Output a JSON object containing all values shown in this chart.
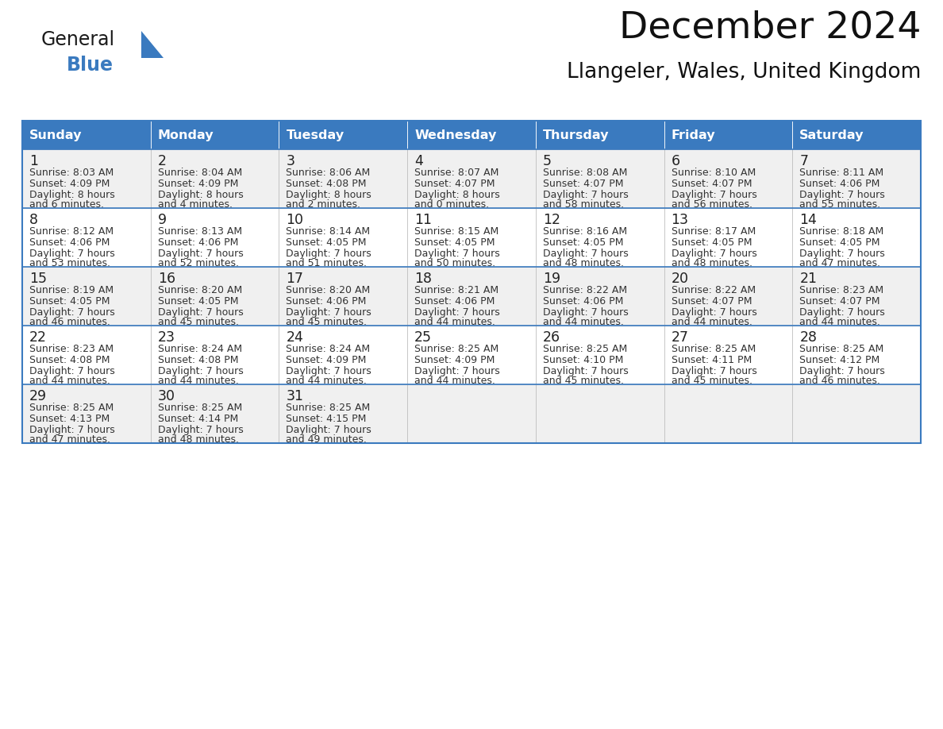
{
  "title": "December 2024",
  "subtitle": "Llangeler, Wales, United Kingdom",
  "header_color": "#3a7abf",
  "header_text_color": "#ffffff",
  "cell_bg_odd": "#f0f0f0",
  "cell_bg_even": "#ffffff",
  "border_color": "#3a7abf",
  "inner_border_color": "#aaaaaa",
  "day_headers": [
    "Sunday",
    "Monday",
    "Tuesday",
    "Wednesday",
    "Thursday",
    "Friday",
    "Saturday"
  ],
  "weeks": [
    [
      {
        "day": 1,
        "sunrise": "8:03 AM",
        "sunset": "4:09 PM",
        "daylight": "8 hours and 6 minutes."
      },
      {
        "day": 2,
        "sunrise": "8:04 AM",
        "sunset": "4:09 PM",
        "daylight": "8 hours and 4 minutes."
      },
      {
        "day": 3,
        "sunrise": "8:06 AM",
        "sunset": "4:08 PM",
        "daylight": "8 hours and 2 minutes."
      },
      {
        "day": 4,
        "sunrise": "8:07 AM",
        "sunset": "4:07 PM",
        "daylight": "8 hours and 0 minutes."
      },
      {
        "day": 5,
        "sunrise": "8:08 AM",
        "sunset": "4:07 PM",
        "daylight": "7 hours and 58 minutes."
      },
      {
        "day": 6,
        "sunrise": "8:10 AM",
        "sunset": "4:07 PM",
        "daylight": "7 hours and 56 minutes."
      },
      {
        "day": 7,
        "sunrise": "8:11 AM",
        "sunset": "4:06 PM",
        "daylight": "7 hours and 55 minutes."
      }
    ],
    [
      {
        "day": 8,
        "sunrise": "8:12 AM",
        "sunset": "4:06 PM",
        "daylight": "7 hours and 53 minutes."
      },
      {
        "day": 9,
        "sunrise": "8:13 AM",
        "sunset": "4:06 PM",
        "daylight": "7 hours and 52 minutes."
      },
      {
        "day": 10,
        "sunrise": "8:14 AM",
        "sunset": "4:05 PM",
        "daylight": "7 hours and 51 minutes."
      },
      {
        "day": 11,
        "sunrise": "8:15 AM",
        "sunset": "4:05 PM",
        "daylight": "7 hours and 50 minutes."
      },
      {
        "day": 12,
        "sunrise": "8:16 AM",
        "sunset": "4:05 PM",
        "daylight": "7 hours and 48 minutes."
      },
      {
        "day": 13,
        "sunrise": "8:17 AM",
        "sunset": "4:05 PM",
        "daylight": "7 hours and 48 minutes."
      },
      {
        "day": 14,
        "sunrise": "8:18 AM",
        "sunset": "4:05 PM",
        "daylight": "7 hours and 47 minutes."
      }
    ],
    [
      {
        "day": 15,
        "sunrise": "8:19 AM",
        "sunset": "4:05 PM",
        "daylight": "7 hours and 46 minutes."
      },
      {
        "day": 16,
        "sunrise": "8:20 AM",
        "sunset": "4:05 PM",
        "daylight": "7 hours and 45 minutes."
      },
      {
        "day": 17,
        "sunrise": "8:20 AM",
        "sunset": "4:06 PM",
        "daylight": "7 hours and 45 minutes."
      },
      {
        "day": 18,
        "sunrise": "8:21 AM",
        "sunset": "4:06 PM",
        "daylight": "7 hours and 44 minutes."
      },
      {
        "day": 19,
        "sunrise": "8:22 AM",
        "sunset": "4:06 PM",
        "daylight": "7 hours and 44 minutes."
      },
      {
        "day": 20,
        "sunrise": "8:22 AM",
        "sunset": "4:07 PM",
        "daylight": "7 hours and 44 minutes."
      },
      {
        "day": 21,
        "sunrise": "8:23 AM",
        "sunset": "4:07 PM",
        "daylight": "7 hours and 44 minutes."
      }
    ],
    [
      {
        "day": 22,
        "sunrise": "8:23 AM",
        "sunset": "4:08 PM",
        "daylight": "7 hours and 44 minutes."
      },
      {
        "day": 23,
        "sunrise": "8:24 AM",
        "sunset": "4:08 PM",
        "daylight": "7 hours and 44 minutes."
      },
      {
        "day": 24,
        "sunrise": "8:24 AM",
        "sunset": "4:09 PM",
        "daylight": "7 hours and 44 minutes."
      },
      {
        "day": 25,
        "sunrise": "8:25 AM",
        "sunset": "4:09 PM",
        "daylight": "7 hours and 44 minutes."
      },
      {
        "day": 26,
        "sunrise": "8:25 AM",
        "sunset": "4:10 PM",
        "daylight": "7 hours and 45 minutes."
      },
      {
        "day": 27,
        "sunrise": "8:25 AM",
        "sunset": "4:11 PM",
        "daylight": "7 hours and 45 minutes."
      },
      {
        "day": 28,
        "sunrise": "8:25 AM",
        "sunset": "4:12 PM",
        "daylight": "7 hours and 46 minutes."
      }
    ],
    [
      {
        "day": 29,
        "sunrise": "8:25 AM",
        "sunset": "4:13 PM",
        "daylight": "7 hours and 47 minutes."
      },
      {
        "day": 30,
        "sunrise": "8:25 AM",
        "sunset": "4:14 PM",
        "daylight": "7 hours and 48 minutes."
      },
      {
        "day": 31,
        "sunrise": "8:25 AM",
        "sunset": "4:15 PM",
        "daylight": "7 hours and 49 minutes."
      },
      null,
      null,
      null,
      null
    ]
  ],
  "logo_general_color": "#1a1a1a",
  "logo_blue_color": "#3a7abf",
  "logo_triangle_color": "#3a7abf",
  "fig_width": 11.88,
  "fig_height": 9.18,
  "dpi": 100
}
